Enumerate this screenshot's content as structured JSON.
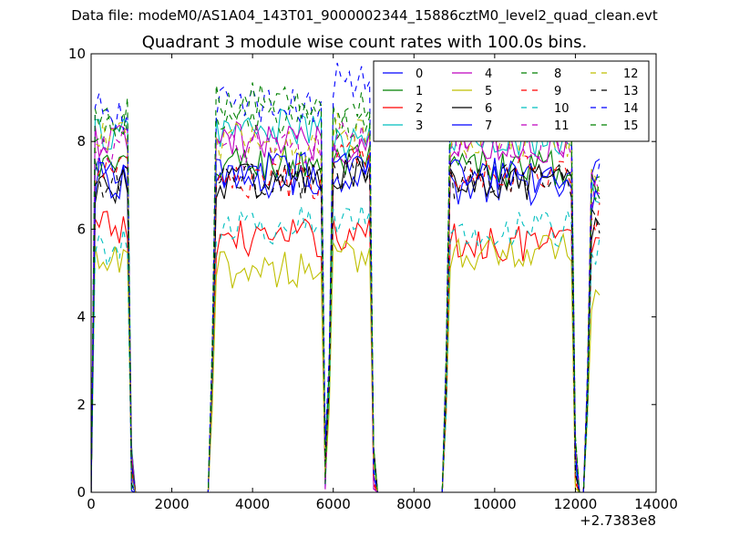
{
  "suptitle": "Data file: modeM0/AS1A04_143T01_9000002344_15886cztM0_level2_quad_clean.evt",
  "chart_data": {
    "type": "line",
    "title": "Quadrant 3 module wise count rates with 100.0s bins.",
    "xlabel": "",
    "ylabel": "",
    "x_offset_label": "+2.7383e8",
    "xlim": [
      0,
      14000
    ],
    "ylim": [
      0,
      10
    ],
    "x_ticks": [
      0,
      2000,
      4000,
      6000,
      8000,
      10000,
      12000,
      14000
    ],
    "x_tick_labels": [
      "0",
      "2000",
      "4000",
      "6000",
      "8000",
      "10000",
      "12000",
      "14000"
    ],
    "y_ticks": [
      0,
      2,
      4,
      6,
      8,
      10
    ],
    "y_tick_labels": [
      "0",
      "2",
      "4",
      "6",
      "8",
      "10"
    ],
    "legend_position": "top-right",
    "legend_columns": 4,
    "segments": [
      [
        100,
        900
      ],
      [
        3000,
        5700
      ],
      [
        5900,
        6900
      ],
      [
        8800,
        11900
      ],
      [
        12300,
        12600
      ]
    ],
    "series": [
      {
        "name": "0",
        "color": "#0000ff",
        "dash": "solid",
        "levels": [
          7.2,
          7.1,
          7.3,
          7.0,
          7.2
        ]
      },
      {
        "name": "1",
        "color": "#008000",
        "dash": "solid",
        "levels": [
          7.4,
          7.5,
          7.5,
          7.4,
          7.0
        ]
      },
      {
        "name": "2",
        "color": "#ff0000",
        "dash": "solid",
        "levels": [
          6.0,
          5.8,
          5.9,
          5.7,
          5.8
        ]
      },
      {
        "name": "3",
        "color": "#00bfbf",
        "dash": "solid",
        "levels": [
          8.2,
          8.3,
          8.0,
          8.1,
          6.8
        ]
      },
      {
        "name": "4",
        "color": "#bf00bf",
        "dash": "solid",
        "levels": [
          8.0,
          8.0,
          7.9,
          7.9,
          7.2
        ]
      },
      {
        "name": "5",
        "color": "#bfbf00",
        "dash": "solid",
        "levels": [
          5.2,
          5.1,
          5.3,
          5.5,
          4.2
        ]
      },
      {
        "name": "6",
        "color": "#000000",
        "dash": "solid",
        "levels": [
          7.0,
          7.1,
          7.2,
          7.0,
          6.0
        ]
      },
      {
        "name": "7",
        "color": "#0000ff",
        "dash": "solid",
        "levels": [
          7.1,
          7.3,
          7.4,
          7.2,
          6.8
        ]
      },
      {
        "name": "8",
        "color": "#008000",
        "dash": "dashed",
        "levels": [
          8.3,
          8.5,
          8.4,
          8.6,
          7.0
        ]
      },
      {
        "name": "9",
        "color": "#ff0000",
        "dash": "dashed",
        "levels": [
          7.3,
          7.1,
          7.6,
          7.3,
          6.2
        ]
      },
      {
        "name": "10",
        "color": "#00bfbf",
        "dash": "dashed",
        "levels": [
          5.6,
          6.1,
          6.3,
          6.0,
          5.6
        ]
      },
      {
        "name": "11",
        "color": "#bf00bf",
        "dash": "dashed",
        "levels": [
          7.9,
          7.8,
          8.1,
          8.0,
          6.8
        ]
      },
      {
        "name": "12",
        "color": "#bfbf00",
        "dash": "dashed",
        "levels": [
          8.0,
          8.0,
          8.2,
          8.1,
          7.0
        ]
      },
      {
        "name": "13",
        "color": "#000000",
        "dash": "dashed",
        "levels": [
          7.0,
          7.1,
          7.3,
          7.1,
          6.3
        ]
      },
      {
        "name": "14",
        "color": "#0000ff",
        "dash": "dashed",
        "levels": [
          8.7,
          8.8,
          9.4,
          8.6,
          7.2
        ]
      },
      {
        "name": "15",
        "color": "#008000",
        "dash": "dashed",
        "levels": [
          8.6,
          8.9,
          8.8,
          8.8,
          7.0
        ]
      }
    ]
  }
}
